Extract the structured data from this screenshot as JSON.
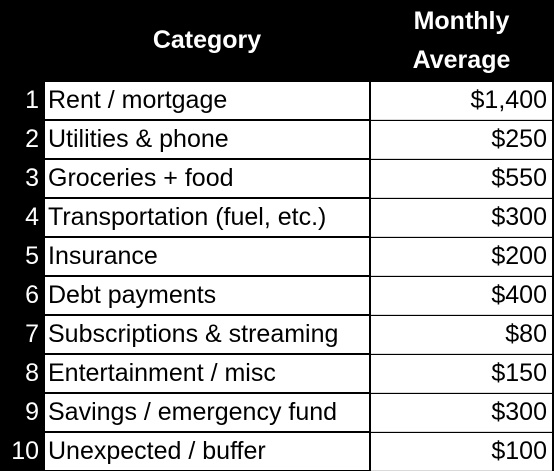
{
  "table": {
    "header": {
      "category": "Category",
      "monthly_line1": "Monthly",
      "monthly_line2": "Average"
    },
    "rows": [
      {
        "num": "1",
        "category": "Rent / mortgage",
        "amount": "$1,400"
      },
      {
        "num": "2",
        "category": "Utilities & phone",
        "amount": "$250"
      },
      {
        "num": "3",
        "category": "Groceries + food",
        "amount": "$550"
      },
      {
        "num": "4",
        "category": "Transportation (fuel, etc.)",
        "amount": "$300"
      },
      {
        "num": "5",
        "category": "Insurance",
        "amount": "$200"
      },
      {
        "num": "6",
        "category": "Debt payments",
        "amount": "$400"
      },
      {
        "num": "7",
        "category": "Subscriptions & streaming",
        "amount": "$80"
      },
      {
        "num": "8",
        "category": "Entertainment / misc",
        "amount": "$150"
      },
      {
        "num": "9",
        "category": "Savings / emergency fund",
        "amount": "$300"
      },
      {
        "num": "10",
        "category": "Unexpected / buffer",
        "amount": "$100"
      }
    ]
  },
  "colors": {
    "header_background": "#000000",
    "header_text": "#ffffff",
    "cell_background": "#ffffff",
    "cell_text": "#000000"
  }
}
